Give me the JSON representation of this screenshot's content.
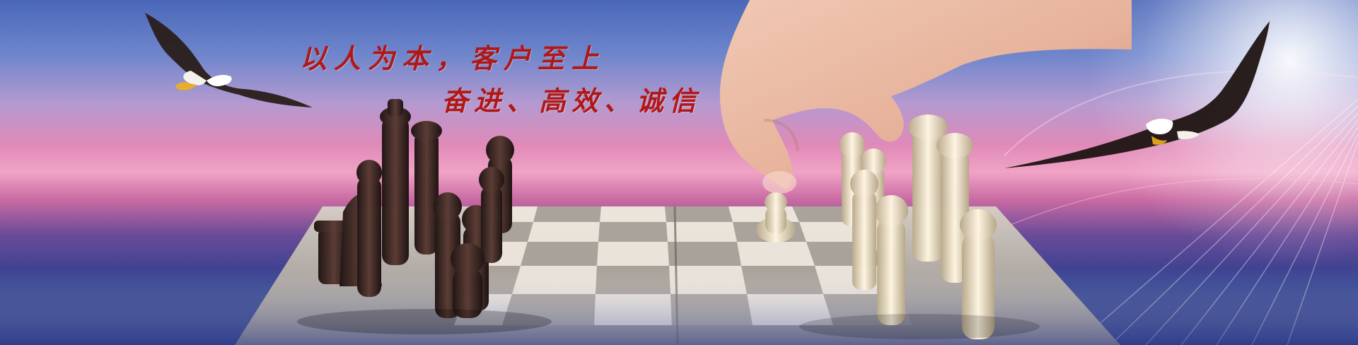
{
  "slogan": {
    "line1": "以人为本，客户至上",
    "line2": "奋进、高效、诚信"
  },
  "colors": {
    "slogan_red": "#b01818",
    "dark_piece": "#3a2622",
    "light_piece": "#efe3c8",
    "board_light": "#ece6dc",
    "board_dark": "#a9a29a"
  },
  "icons": [
    "eagle-left",
    "eagle-right",
    "hand",
    "chess-board",
    "chess-pieces"
  ]
}
